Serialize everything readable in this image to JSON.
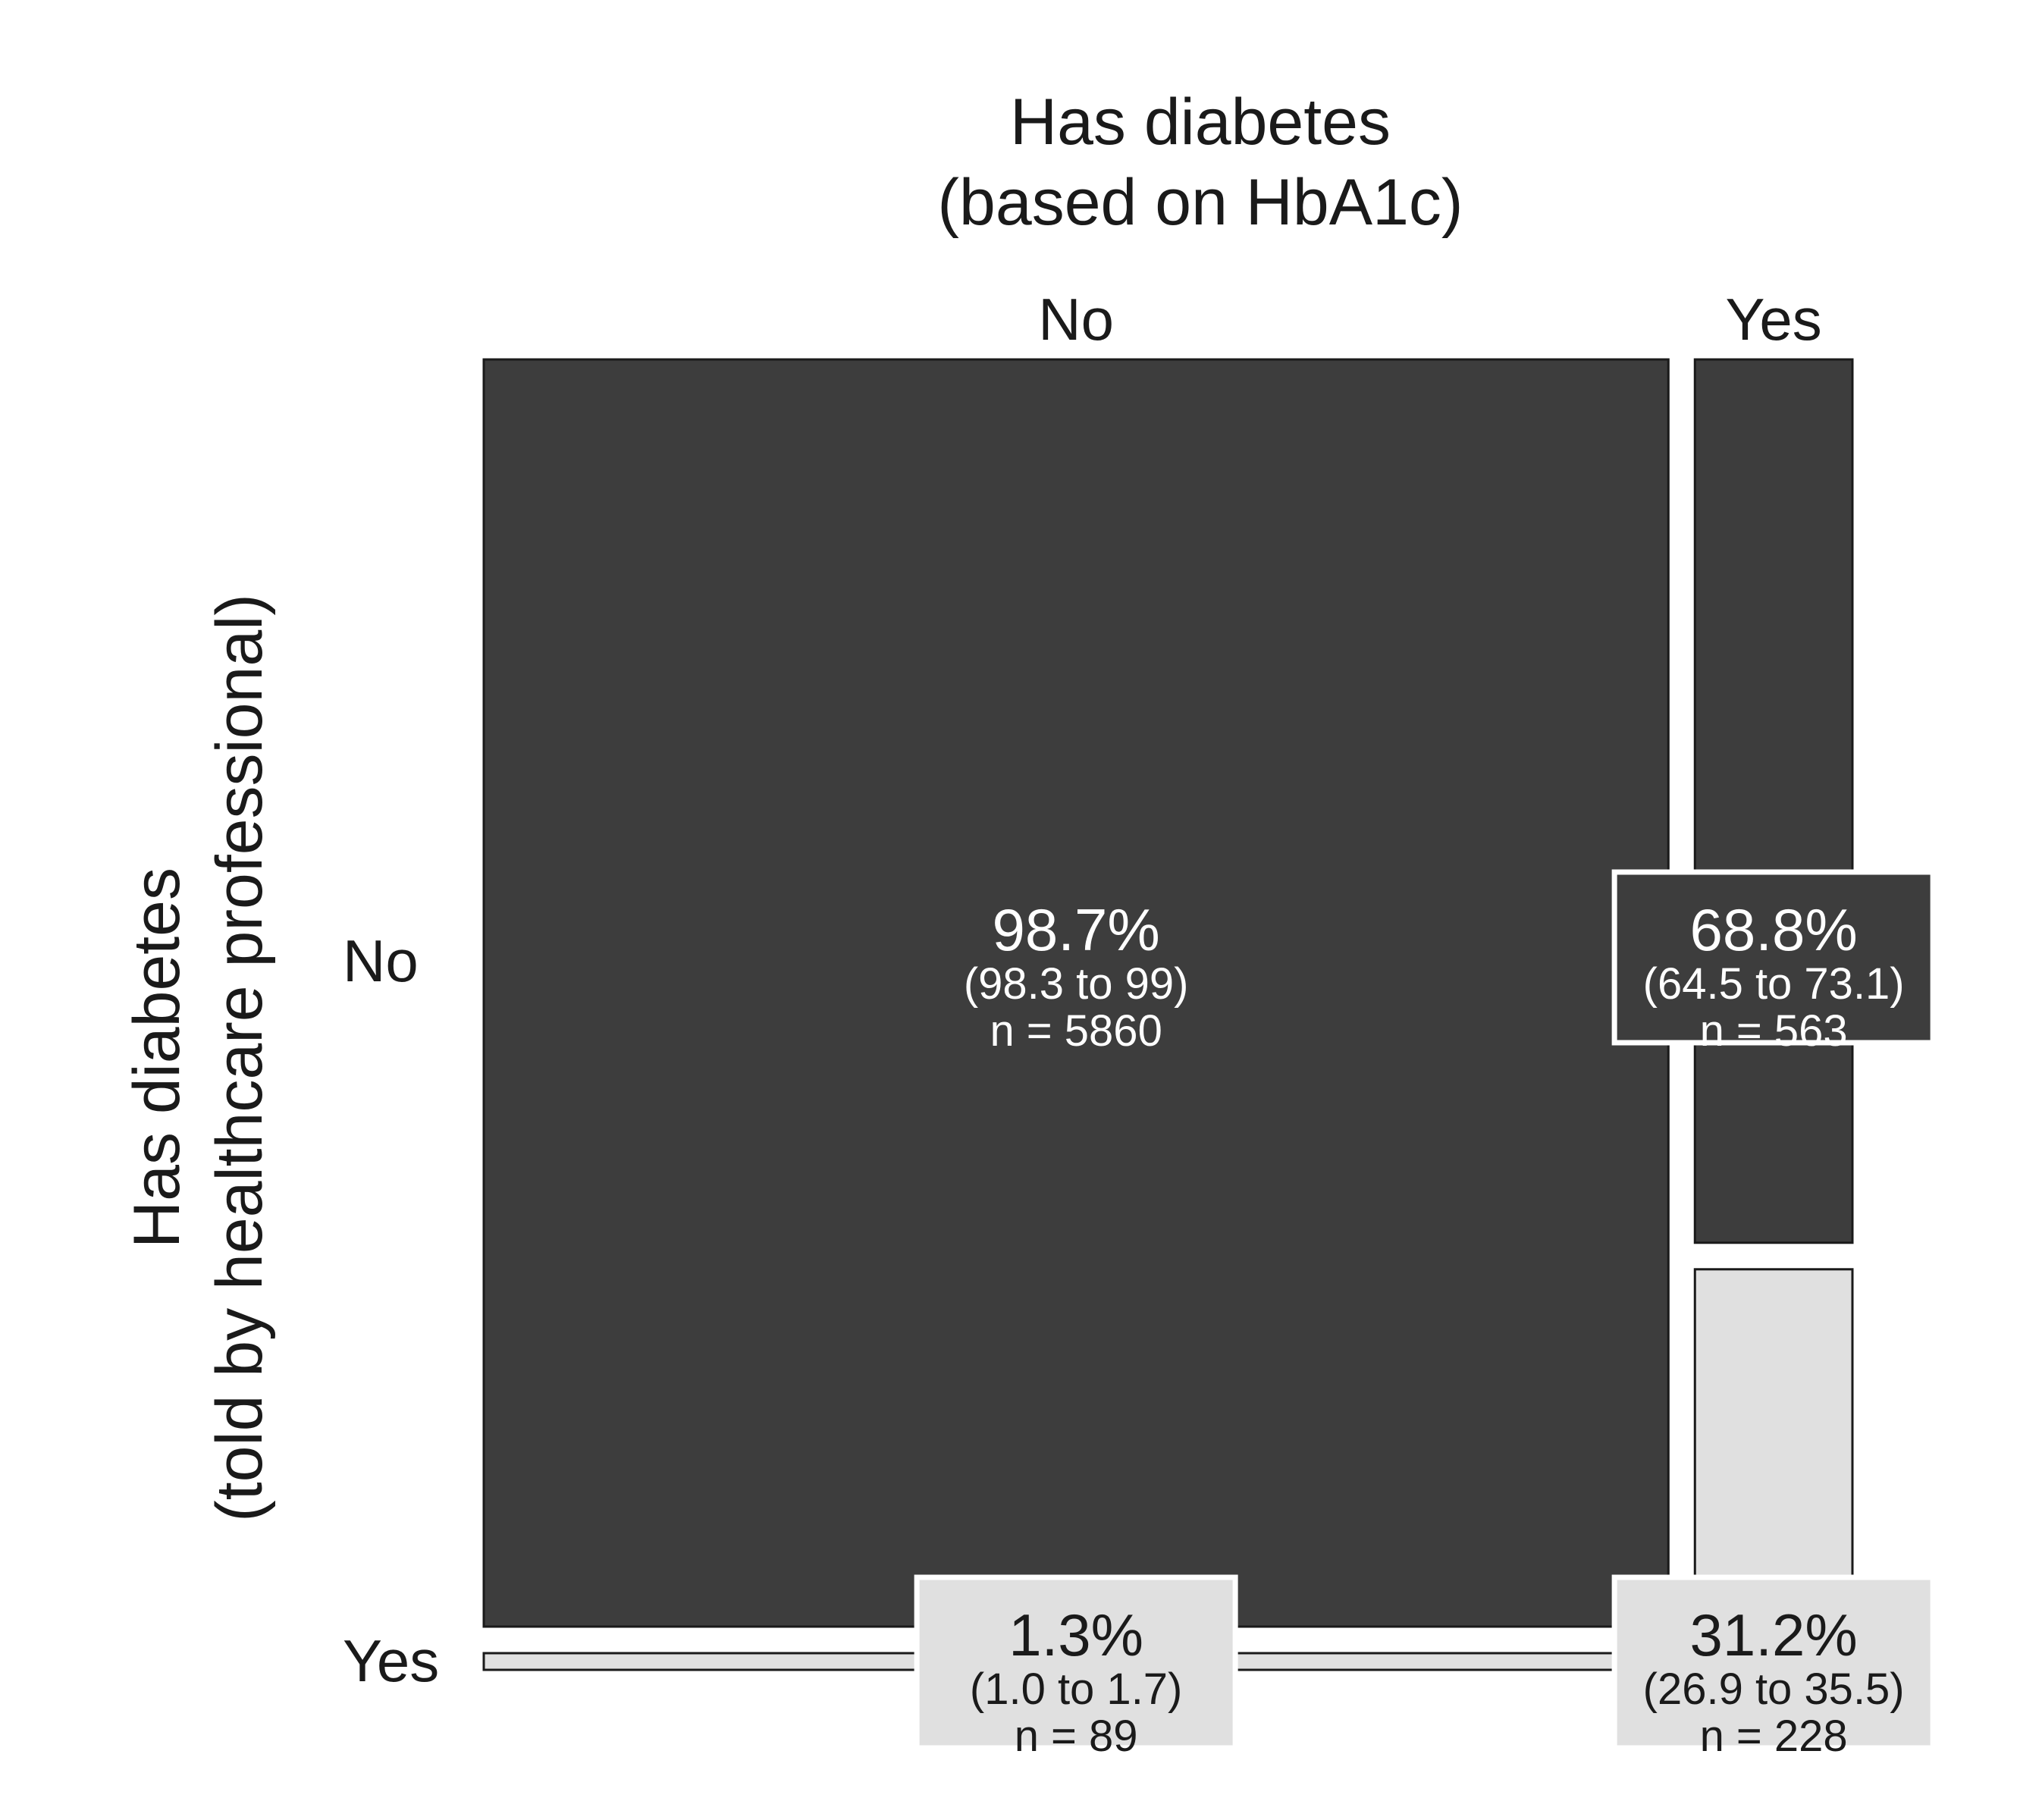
{
  "chart_data": {
    "type": "mosaic",
    "title": "",
    "x_title_line1": "Has diabetes",
    "x_title_line2": "(based on HbA1c)",
    "y_title_line1": "Has diabetes",
    "y_title_line2": "(told by healthcare professional)",
    "x_categories": [
      "No",
      "Yes"
    ],
    "y_categories": [
      "No",
      "Yes"
    ],
    "column_totals": [
      5949,
      791
    ],
    "colors": {
      "No": "#3d3d3d",
      "Yes": "#e0e0e0",
      "stroke": "#1a1a1a",
      "dark_text": "#1a1a1a",
      "light_text": "#ffffff"
    },
    "cells": [
      {
        "x": "No",
        "y": "No",
        "percent": 98.7,
        "ci_low": 98.3,
        "ci_high": 99,
        "n": 5860,
        "percent_label": "98.7%",
        "ci_label": "(98.3 to 99)",
        "n_label": "n = 5860"
      },
      {
        "x": "No",
        "y": "Yes",
        "percent": 1.3,
        "ci_low": 1.0,
        "ci_high": 1.7,
        "n": 89,
        "percent_label": "1.3%",
        "ci_label": "(1.0 to 1.7)",
        "n_label": "n = 89"
      },
      {
        "x": "Yes",
        "y": "No",
        "percent": 68.8,
        "ci_low": 64.5,
        "ci_high": 73.1,
        "n": 563,
        "percent_label": "68.8%",
        "ci_label": "(64.5 to 73.1)",
        "n_label": "n = 563"
      },
      {
        "x": "Yes",
        "y": "Yes",
        "percent": 31.2,
        "ci_low": 26.9,
        "ci_high": 35.5,
        "n": 228,
        "percent_label": "31.2%",
        "ci_label": "(26.9 to 35.5)",
        "n_label": "n = 228"
      }
    ]
  }
}
